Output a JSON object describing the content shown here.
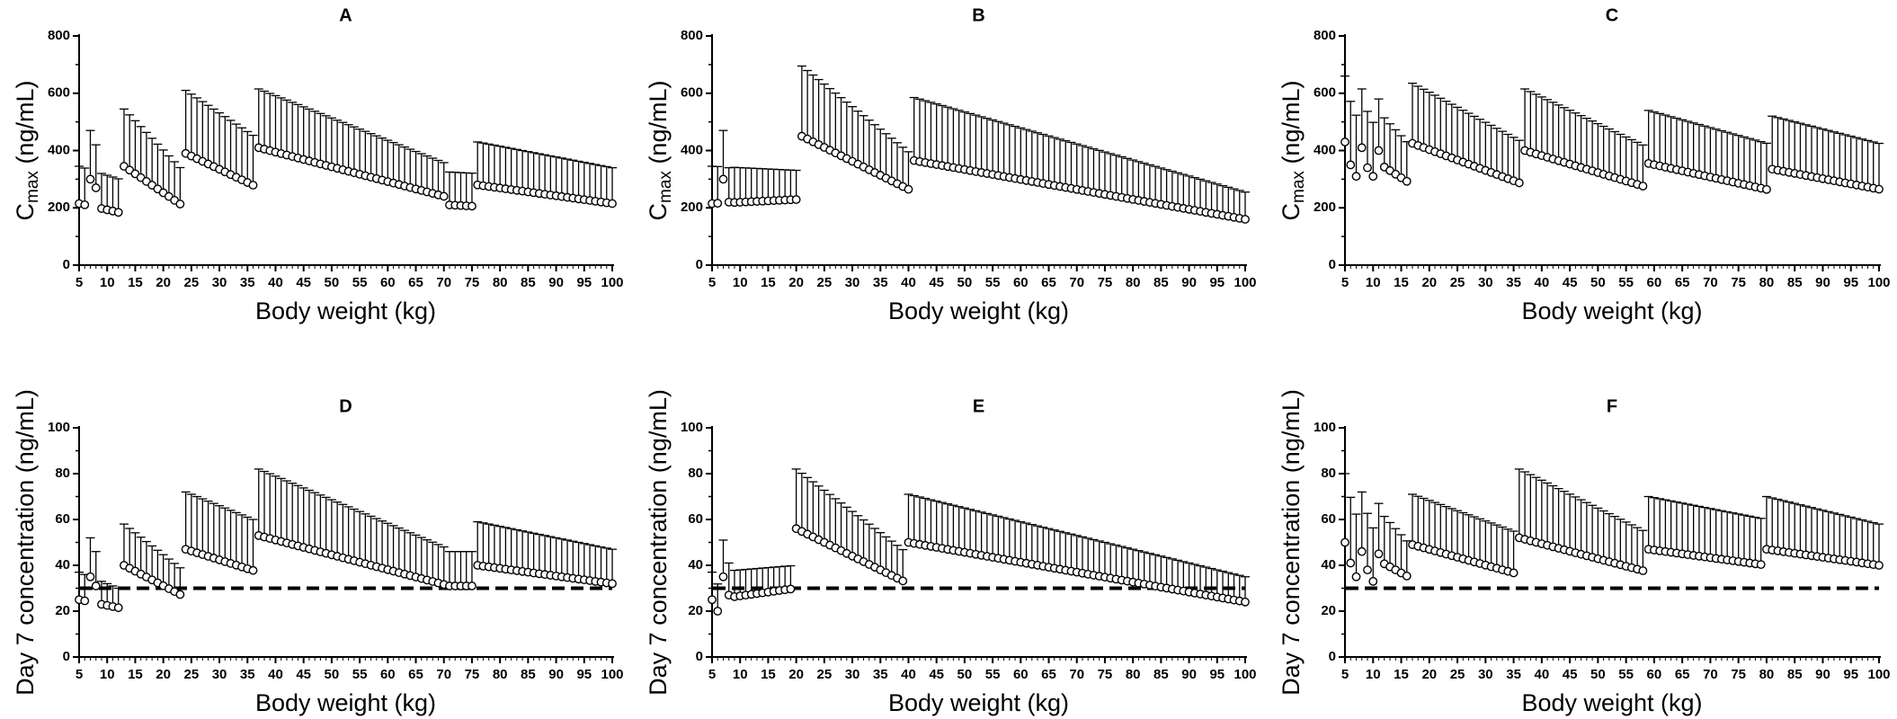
{
  "figure": {
    "x_ticks": [
      5,
      10,
      15,
      20,
      25,
      30,
      35,
      40,
      45,
      50,
      55,
      60,
      65,
      70,
      75,
      80,
      85,
      90,
      95,
      100
    ],
    "marker_color": "#ffffff",
    "line_color": "#000000"
  },
  "chart_data": [
    {
      "type": "scatter",
      "title": "A",
      "xlabel": "Body weight (kg)",
      "ylabel": "C",
      "ylabel_subscript": "max",
      "ylabel_unit": "(ng/mL)",
      "xlim": [
        5,
        100
      ],
      "ylim": [
        0,
        800
      ],
      "y_ticks": [
        0,
        200,
        400,
        600,
        800
      ],
      "error_bars": "upper",
      "segments": [
        {
          "x": [
            5,
            13
          ],
          "y_start": 215,
          "y_end": 180,
          "err_start": 130,
          "err_end": 115,
          "pattern": {
            "7": 300,
            "8": 270
          },
          "err_pattern": {
            "7": 170,
            "8": 150
          }
        },
        {
          "x": [
            13,
            24
          ],
          "y_start": 345,
          "y_end": 200,
          "err_start": 200,
          "err_end": 120
        },
        {
          "x": [
            24,
            37
          ],
          "y_start": 390,
          "y_end": 270,
          "err_start": 220,
          "err_end": 170
        },
        {
          "x": [
            37,
            71
          ],
          "y_start": 410,
          "y_end": 235,
          "err_start": 205,
          "err_end": 115
        },
        {
          "x": [
            71,
            76
          ],
          "y_start": 210,
          "y_end": 205,
          "err_start": 115,
          "err_end": 115
        },
        {
          "x": [
            76,
            100
          ],
          "y_start": 280,
          "y_end": 215,
          "err_start": 150,
          "err_end": 125
        }
      ]
    },
    {
      "type": "scatter",
      "title": "B",
      "xlabel": "Body weight (kg)",
      "ylabel": "C",
      "ylabel_subscript": "max",
      "ylabel_unit": "(ng/mL)",
      "xlim": [
        5,
        100
      ],
      "ylim": [
        0,
        800
      ],
      "y_ticks": [
        0,
        200,
        400,
        600,
        800
      ],
      "error_bars": "upper",
      "segments": [
        {
          "x": [
            5,
            21
          ],
          "y_start": 215,
          "y_end": 230,
          "err_start": 130,
          "err_end": 100,
          "pattern": {
            "7": 300,
            "8": 220
          },
          "err_pattern": {
            "7": 170,
            "8": 120
          }
        },
        {
          "x": [
            21,
            41
          ],
          "y_start": 450,
          "y_end": 255,
          "err_start": 245,
          "err_end": 125
        },
        {
          "x": [
            41,
            100
          ],
          "y_start": 365,
          "y_end": 160,
          "err_start": 220,
          "err_end": 95
        }
      ]
    },
    {
      "type": "scatter",
      "title": "C",
      "xlabel": "Body weight (kg)",
      "ylabel": "C",
      "ylabel_subscript": "max",
      "ylabel_unit": "(ng/mL)",
      "xlim": [
        5,
        100
      ],
      "ylim": [
        0,
        800
      ],
      "y_ticks": [
        0,
        200,
        400,
        600,
        800
      ],
      "error_bars": "upper",
      "segments": [
        {
          "x": [
            5,
            17
          ],
          "y_start": 430,
          "y_end": 280,
          "err_start": 230,
          "err_end": 130,
          "pattern": {
            "6": 350,
            "7": 310,
            "8": 410,
            "9": 340,
            "10": 310,
            "11": 400
          }
        },
        {
          "x": [
            17,
            37
          ],
          "y_start": 425,
          "y_end": 280,
          "err_start": 210,
          "err_end": 145
        },
        {
          "x": [
            37,
            59
          ],
          "y_start": 400,
          "y_end": 270,
          "err_start": 215,
          "err_end": 140
        },
        {
          "x": [
            59,
            81
          ],
          "y_start": 355,
          "y_end": 260,
          "err_start": 185,
          "err_end": 160
        },
        {
          "x": [
            81,
            100
          ],
          "y_start": 335,
          "y_end": 265,
          "err_start": 185,
          "err_end": 160
        }
      ]
    },
    {
      "type": "scatter",
      "title": "D",
      "xlabel": "Body weight (kg)",
      "ylabel": "Day 7 concentration (ng/mL)",
      "xlim": [
        5,
        100
      ],
      "ylim": [
        0,
        100
      ],
      "y_ticks": [
        0,
        20,
        40,
        60,
        80,
        100
      ],
      "error_bars": "upper",
      "reference_line_y": 30,
      "segments": [
        {
          "x": [
            5,
            13
          ],
          "y_start": 25,
          "y_end": 21,
          "err_start": 12,
          "err_end": 8,
          "pattern": {
            "7": 35,
            "8": 31
          },
          "err_pattern": {
            "7": 17,
            "8": 15
          }
        },
        {
          "x": [
            13,
            24
          ],
          "y_start": 40,
          "y_end": 26,
          "err_start": 18,
          "err_end": 11
        },
        {
          "x": [
            24,
            37
          ],
          "y_start": 47,
          "y_end": 37,
          "err_start": 25,
          "err_end": 22
        },
        {
          "x": [
            37,
            71
          ],
          "y_start": 53,
          "y_end": 31,
          "err_start": 29,
          "err_end": 16
        },
        {
          "x": [
            71,
            76
          ],
          "y_start": 31,
          "y_end": 31,
          "err_start": 15,
          "err_end": 15
        },
        {
          "x": [
            76,
            100
          ],
          "y_start": 40,
          "y_end": 32,
          "err_start": 19,
          "err_end": 15
        }
      ]
    },
    {
      "type": "scatter",
      "title": "E",
      "xlabel": "Body weight (kg)",
      "ylabel": "Day 7 concentration (ng/mL)",
      "xlim": [
        5,
        100
      ],
      "ylim": [
        0,
        100
      ],
      "y_ticks": [
        0,
        20,
        40,
        60,
        80,
        100
      ],
      "error_bars": "upper",
      "reference_line_y": 30,
      "segments": [
        {
          "x": [
            5,
            20
          ],
          "y_start": 25,
          "y_end": 30,
          "err_start": 12,
          "err_end": 10,
          "pattern": {
            "6": 20,
            "7": 35,
            "8": 27
          },
          "err_pattern": {
            "7": 16,
            "8": 14
          }
        },
        {
          "x": [
            20,
            40
          ],
          "y_start": 56,
          "y_end": 32,
          "err_start": 26,
          "err_end": 13
        },
        {
          "x": [
            40,
            100
          ],
          "y_start": 50,
          "y_end": 24,
          "err_start": 21,
          "err_end": 11
        }
      ]
    },
    {
      "type": "scatter",
      "title": "F",
      "xlabel": "Body weight (kg)",
      "ylabel": "Day 7 concentration (ng/mL)",
      "xlim": [
        5,
        100
      ],
      "ylim": [
        0,
        100
      ],
      "y_ticks": [
        0,
        20,
        40,
        60,
        80,
        100
      ],
      "error_bars": "upper",
      "reference_line_y": 30,
      "segments": [
        {
          "x": [
            5,
            17
          ],
          "y_start": 50,
          "y_end": 34,
          "err_start": 30,
          "err_end": 14,
          "pattern": {
            "6": 41,
            "7": 35,
            "8": 46,
            "9": 38,
            "10": 33,
            "11": 45
          }
        },
        {
          "x": [
            17,
            36
          ],
          "y_start": 49,
          "y_end": 36,
          "err_start": 22,
          "err_end": 18
        },
        {
          "x": [
            36,
            59
          ],
          "y_start": 52,
          "y_end": 37,
          "err_start": 30,
          "err_end": 17
        },
        {
          "x": [
            59,
            80
          ],
          "y_start": 47,
          "y_end": 40,
          "err_start": 23,
          "err_end": 20
        },
        {
          "x": [
            80,
            100
          ],
          "y_start": 47,
          "y_end": 40,
          "err_start": 23,
          "err_end": 18
        }
      ]
    }
  ]
}
